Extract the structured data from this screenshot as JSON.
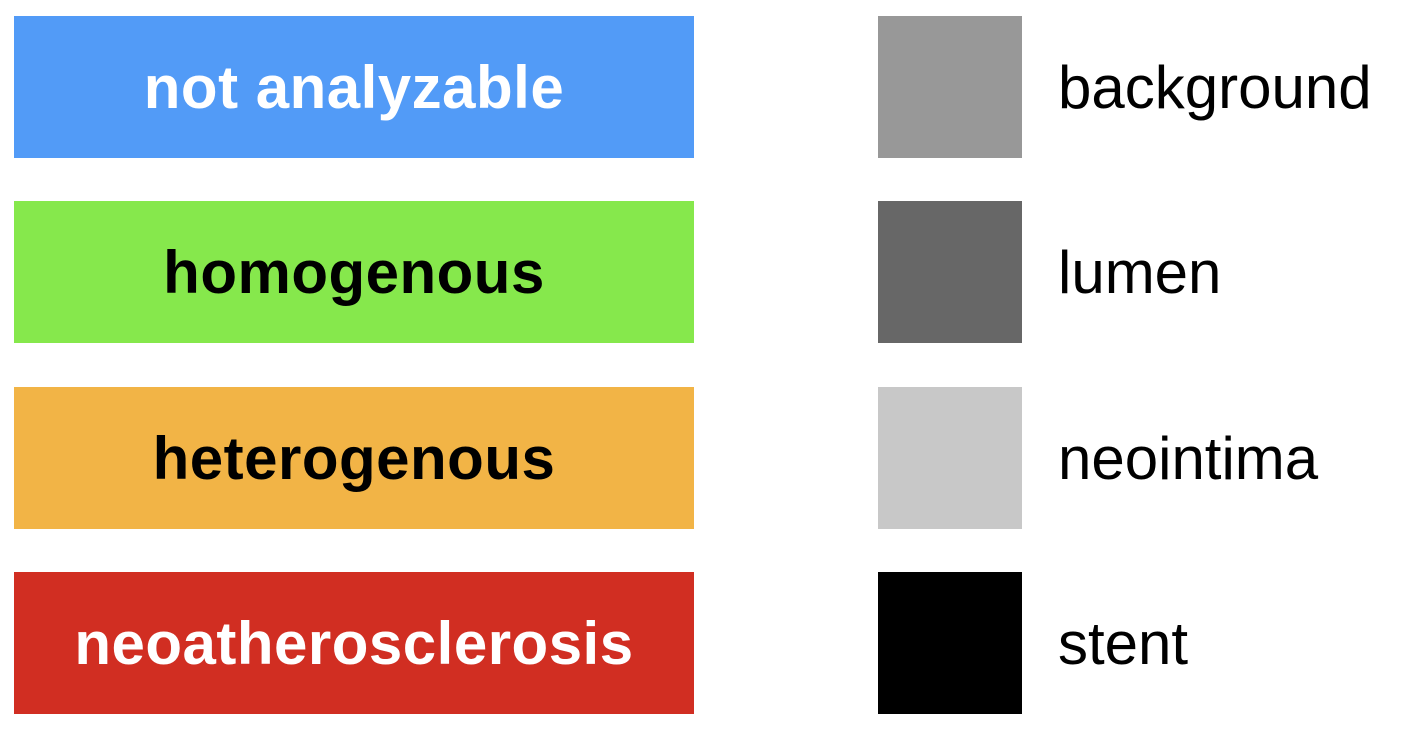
{
  "categories": [
    {
      "label": "not analyzable",
      "color": "#529bf7",
      "text_color": "#ffffff"
    },
    {
      "label": "homogenous",
      "color": "#86e84c",
      "text_color": "#000000"
    },
    {
      "label": "heterogenous",
      "color": "#f2b446",
      "text_color": "#000000"
    },
    {
      "label": "neoatherosclerosis",
      "color": "#d12e22",
      "text_color": "#ffffff"
    }
  ],
  "segments": [
    {
      "label": "background",
      "color": "#989898"
    },
    {
      "label": "lumen",
      "color": "#676767"
    },
    {
      "label": "neointima",
      "color": "#c8c8c8"
    },
    {
      "label": "stent",
      "color": "#000000"
    }
  ]
}
